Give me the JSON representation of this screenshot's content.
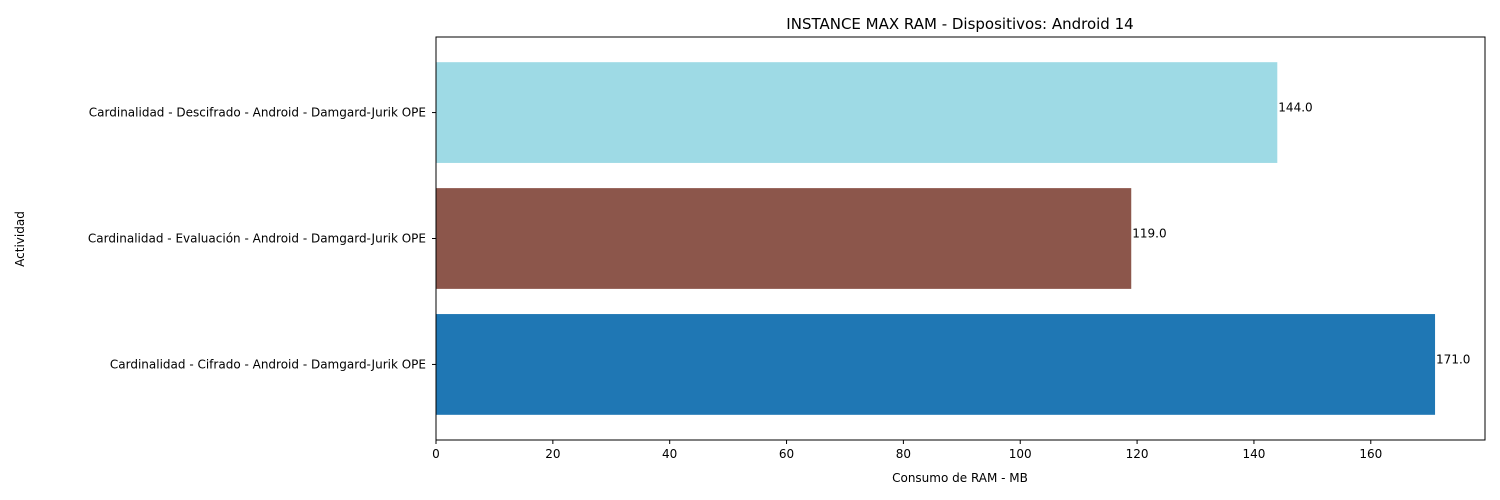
{
  "chart_data": {
    "type": "bar",
    "orientation": "horizontal",
    "title": "INSTANCE MAX RAM - Dispositivos: Android 14",
    "xlabel": "Consumo de RAM - MB",
    "ylabel": "Actividad",
    "xlim": [
      0,
      179.55
    ],
    "x_ticks": [
      0,
      20,
      40,
      60,
      80,
      100,
      120,
      140,
      160
    ],
    "grid": false,
    "categories": [
      "Cardinalidad - Cifrado - Android - Damgard-Jurik OPE",
      "Cardinalidad - Evaluación - Android - Damgard-Jurik OPE",
      "Cardinalidad - Descifrado - Android - Damgard-Jurik OPE"
    ],
    "values": [
      171.0,
      119.0,
      144.0
    ],
    "value_labels": [
      "171.0",
      "119.0",
      "144.0"
    ],
    "colors": [
      "#1f77b4",
      "#8c564b",
      "#9edae5"
    ]
  }
}
